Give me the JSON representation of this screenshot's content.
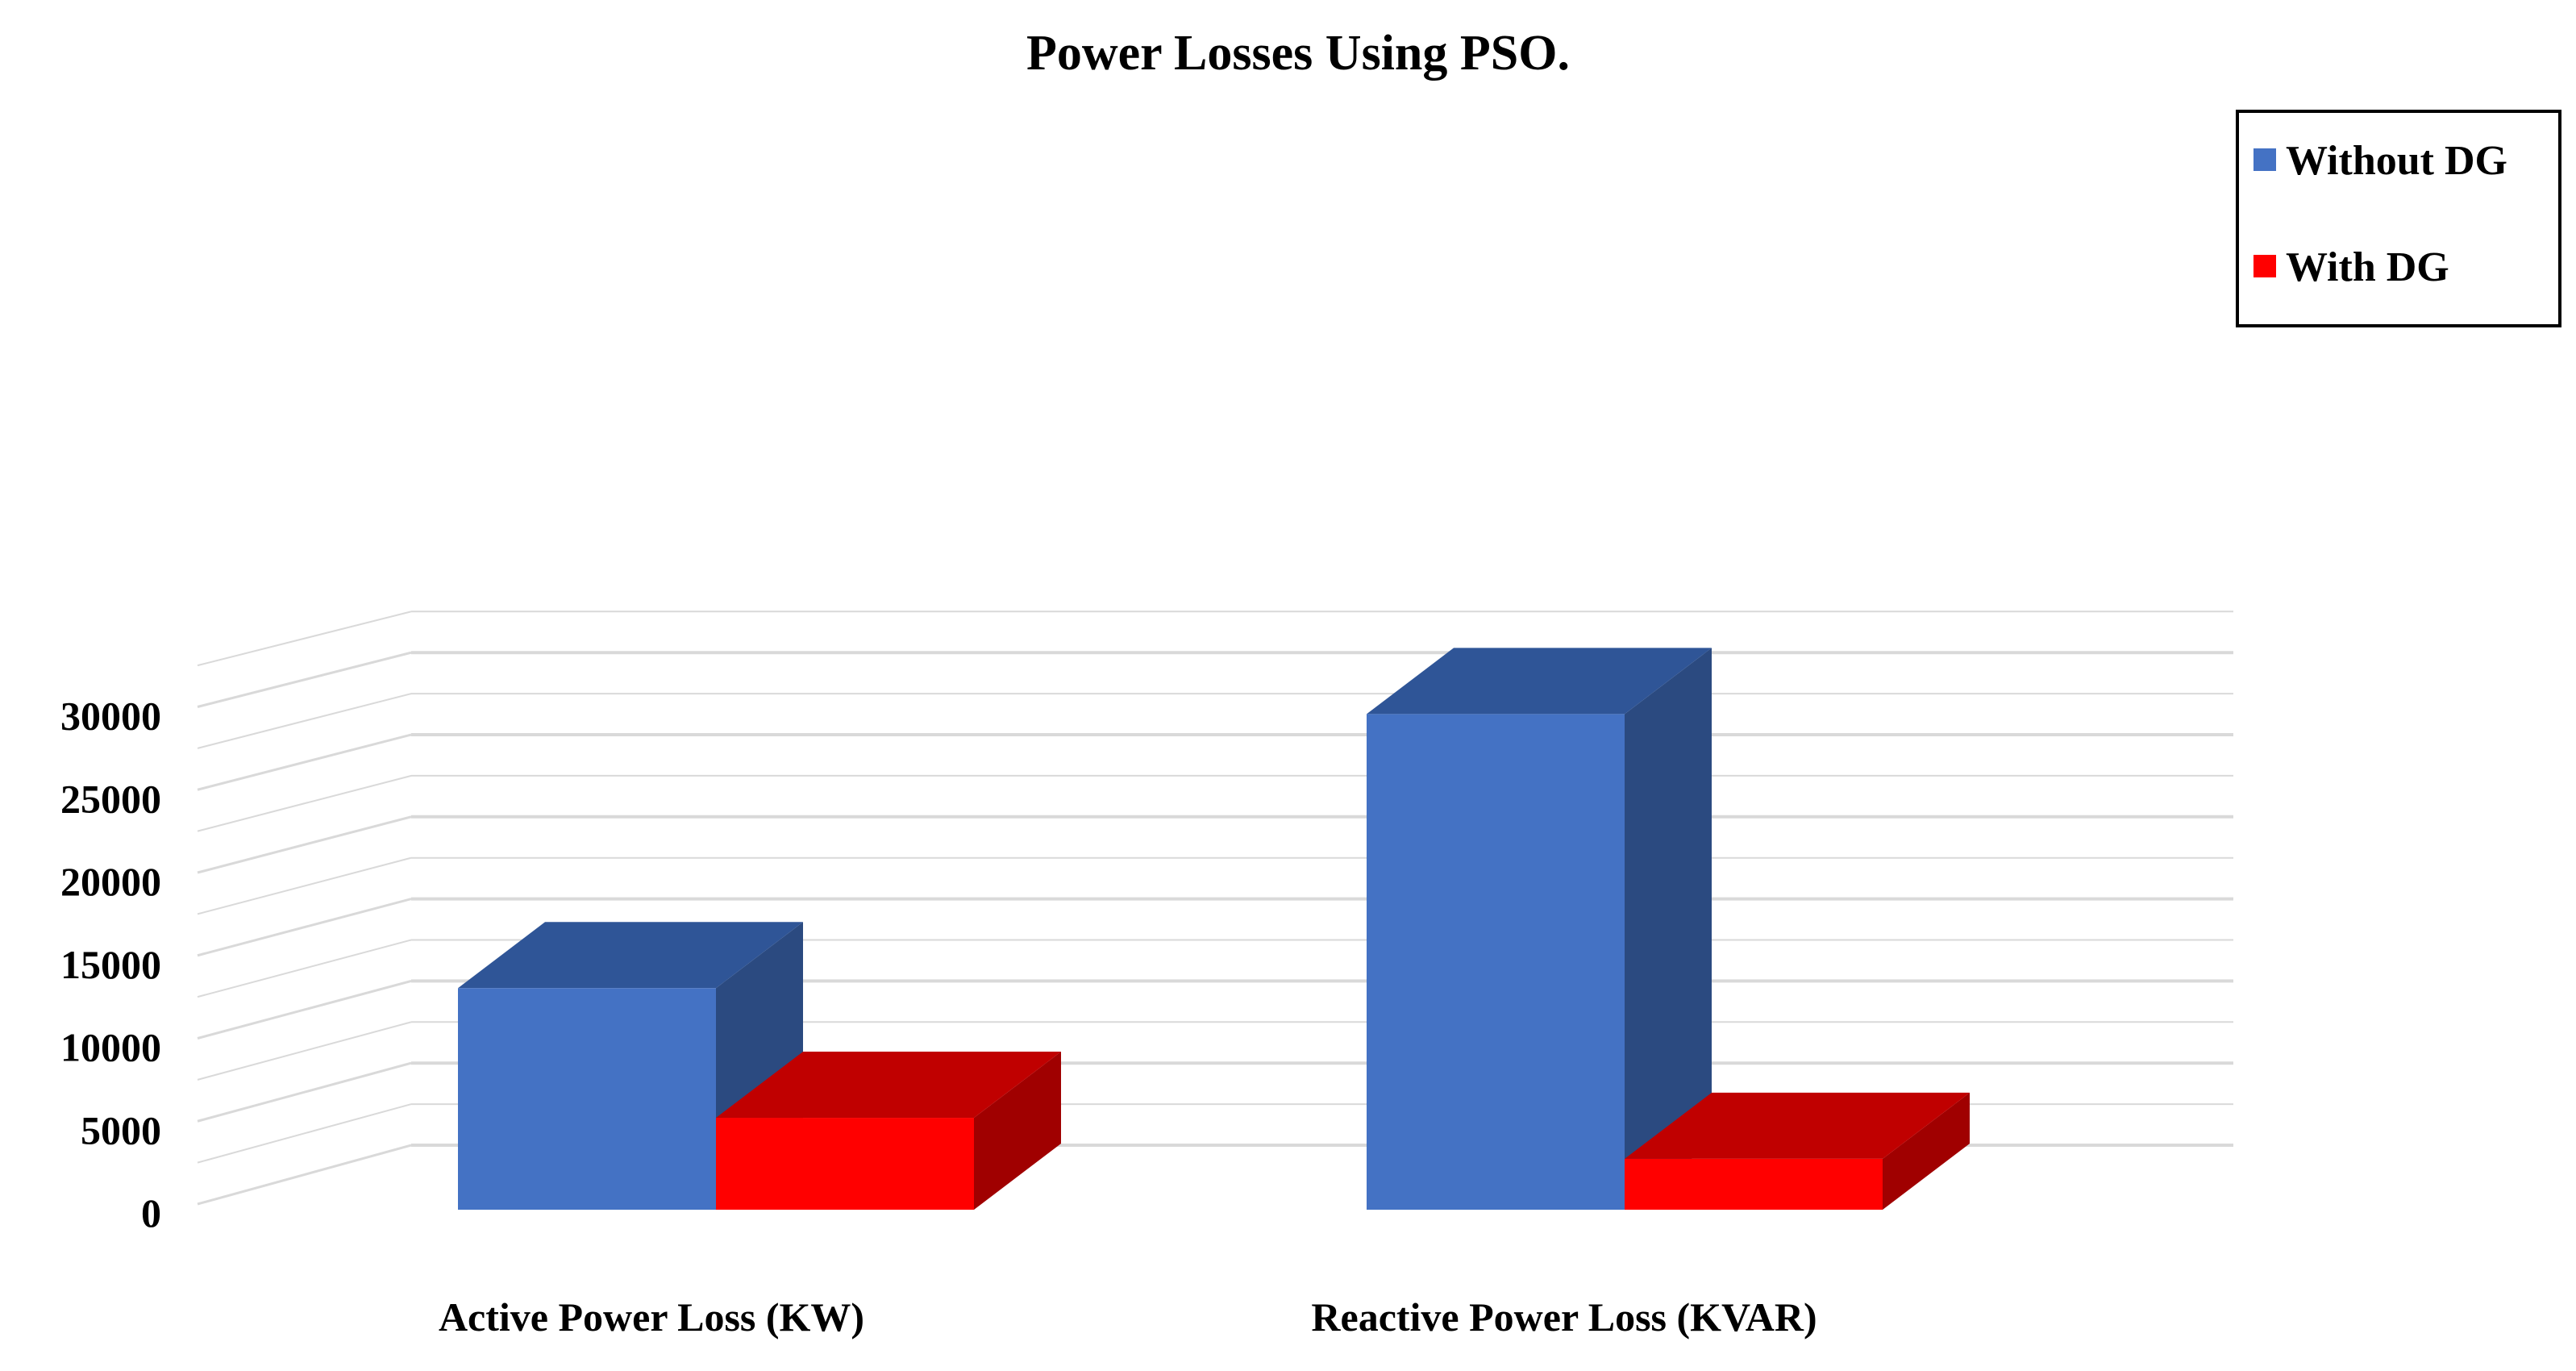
{
  "chart_data": {
    "type": "bar",
    "title": "Power  Losses Using PSO.",
    "xlabel": "",
    "ylabel": "",
    "categories": [
      "Active Power Loss (KW)",
      "Reactive Power Loss (KVAR)"
    ],
    "series": [
      {
        "name": "Without DG",
        "values": [
          13500,
          30200
        ]
      },
      {
        "name": "With DG",
        "values": [
          5600,
          3100
        ]
      }
    ],
    "ylim": [
      0,
      30000
    ],
    "yticks": [
      "0",
      "5000",
      "10000",
      "15000",
      "20000",
      "25000",
      "30000"
    ],
    "grid": true,
    "legend_position": "top-right",
    "three_d": true
  },
  "colors": {
    "without_dg": {
      "front": "#4472c4",
      "top": "#2f5597",
      "side": "#2b4a80"
    },
    "with_dg": {
      "front": "#ff0000",
      "top": "#c00000",
      "side": "#a00000"
    },
    "grid": "#d9d9d9"
  }
}
